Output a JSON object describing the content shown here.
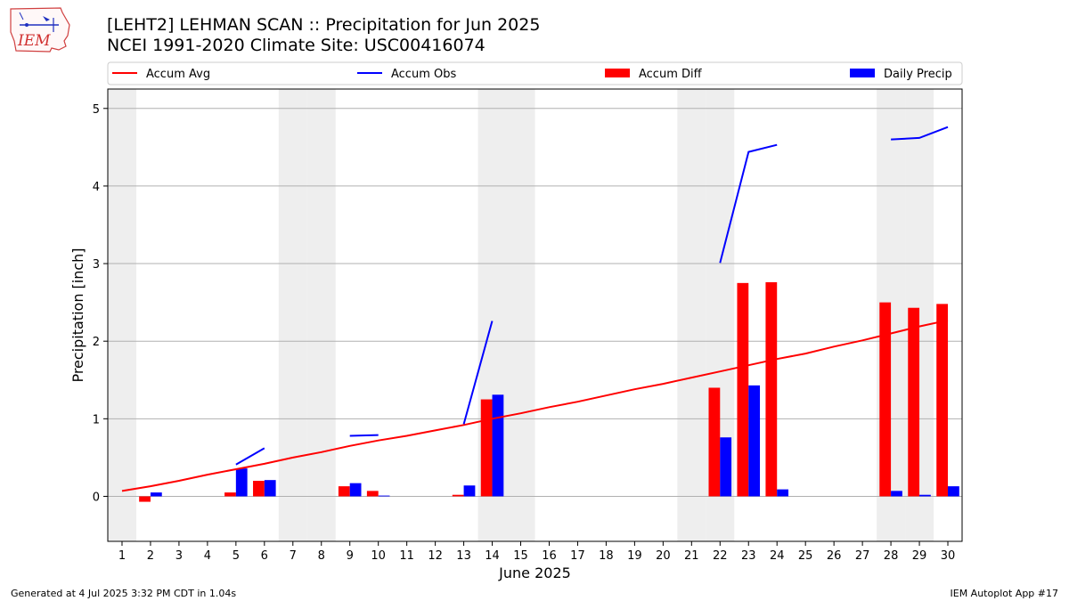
{
  "header": {
    "title_line1": "[LEHT2] LEHMAN SCAN :: Precipitation for Jun 2025",
    "title_line2": "NCEI 1991-2020 Climate Site: USC00416074",
    "logo_text": "IEM"
  },
  "footer": {
    "left": "Generated at 4 Jul 2025 3:32 PM CDT in 1.04s",
    "right": "IEM Autoplot App #17"
  },
  "colors": {
    "accum_avg": "#ff0000",
    "accum_obs": "#0000ff",
    "accum_diff": "#ff0000",
    "daily_precip": "#0000ff",
    "weekend_shade": "#eeeeee",
    "grid": "#b0b0b0"
  },
  "chart_data": {
    "type": "bar",
    "xlabel": "June 2025",
    "ylabel": "Precipitation [inch]",
    "xlim": [
      0.5,
      30.5
    ],
    "ylim": [
      -0.58,
      5.25
    ],
    "yticks": [
      0,
      1,
      2,
      3,
      4,
      5
    ],
    "grid": "horizontal",
    "legend_position": "top",
    "legend": [
      "Accum Avg",
      "Accum Obs",
      "Accum Diff",
      "Daily Precip"
    ],
    "days": [
      1,
      2,
      3,
      4,
      5,
      6,
      7,
      8,
      9,
      10,
      11,
      12,
      13,
      14,
      15,
      16,
      17,
      18,
      19,
      20,
      21,
      22,
      23,
      24,
      25,
      26,
      27,
      28,
      29,
      30
    ],
    "weekend_days": [
      1,
      7,
      8,
      14,
      15,
      21,
      22,
      28,
      29
    ],
    "series": [
      {
        "name": "Accum Avg",
        "kind": "line",
        "values": [
          0.07,
          0.13,
          0.2,
          0.28,
          0.35,
          0.42,
          0.5,
          0.57,
          0.65,
          0.72,
          0.78,
          0.85,
          0.92,
          1.0,
          1.07,
          1.15,
          1.22,
          1.3,
          1.38,
          1.45,
          1.53,
          1.61,
          1.69,
          1.77,
          1.84,
          1.93,
          2.01,
          2.1,
          2.19,
          2.27
        ]
      },
      {
        "name": "Accum Obs",
        "kind": "line",
        "values": [
          null,
          null,
          null,
          null,
          0.41,
          0.62,
          null,
          null,
          0.78,
          0.79,
          null,
          null,
          0.93,
          2.26,
          null,
          null,
          null,
          null,
          null,
          null,
          null,
          3.01,
          4.44,
          4.53,
          null,
          null,
          null,
          4.6,
          4.62,
          4.76
        ]
      },
      {
        "name": "Accum Diff",
        "kind": "bar",
        "values": [
          0,
          -0.07,
          0,
          0,
          0.05,
          0.2,
          0,
          0,
          0.13,
          0.07,
          0,
          0,
          0.02,
          1.25,
          0,
          0,
          0,
          0,
          0,
          0,
          0,
          1.4,
          2.75,
          2.76,
          0,
          0,
          0,
          2.5,
          2.43,
          2.48
        ]
      },
      {
        "name": "Daily Precip",
        "kind": "bar",
        "values": [
          0,
          0.05,
          0,
          0,
          0.36,
          0.21,
          0,
          0,
          0.17,
          0.01,
          0,
          0,
          0.14,
          1.31,
          0,
          0,
          0,
          0,
          0,
          0,
          0,
          0.76,
          1.43,
          0.09,
          0,
          0,
          0,
          0.07,
          0.02,
          0.13
        ]
      }
    ]
  }
}
